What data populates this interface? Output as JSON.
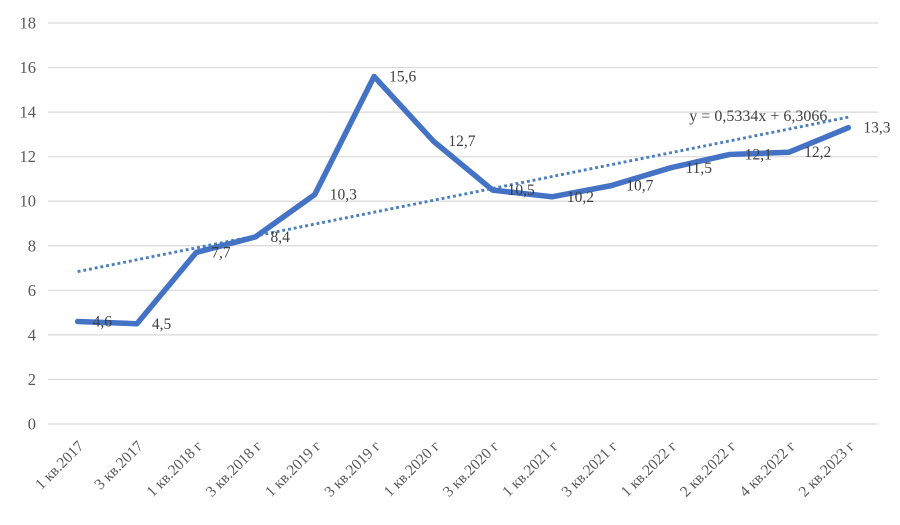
{
  "chart_data": {
    "type": "line",
    "title": "",
    "xlabel": "",
    "ylabel": "",
    "categories": [
      "1 кв.2017",
      "3 кв.2017",
      "1 кв.2018 г",
      "3 кв.2018 г",
      "1 кв.2019 г",
      "3 кв.2019 г",
      "1 кв.2020 г",
      "3 кв.2020 г",
      "1 кв.2021 г",
      "3 кв.2021 г",
      "1 кв.2022 г",
      "2 кв.2022 г",
      "4 кв.2022 г",
      "2 кв.2023 г"
    ],
    "values": [
      4.6,
      4.5,
      7.7,
      8.4,
      10.3,
      15.6,
      12.7,
      10.5,
      10.2,
      10.7,
      11.5,
      12.1,
      12.2,
      13.3
    ],
    "data_labels": [
      "4,6",
      "4,5",
      "7,7",
      "8,4",
      "10,3",
      "15,6",
      "12,7",
      "10,5",
      "10,2",
      "10,7",
      "11,5",
      "12,1",
      "12,2",
      "13,3"
    ],
    "y_axis": {
      "min": 0,
      "max": 18,
      "step": 2,
      "ticks": [
        0,
        2,
        4,
        6,
        8,
        10,
        12,
        14,
        16,
        18
      ]
    },
    "grid": true,
    "legend": "none",
    "trendline": {
      "type": "linear",
      "slope": 0.5334,
      "intercept": 6.3066,
      "equation_label": "y = 0,5334x + 6,3066"
    },
    "colors": {
      "series": "#4472C4",
      "trend": "#4B7EBF",
      "gridline": "#D9D9D9",
      "tick_text": "#595959",
      "label_text": "#3F3F3F",
      "background": "#FFFFFF"
    }
  }
}
